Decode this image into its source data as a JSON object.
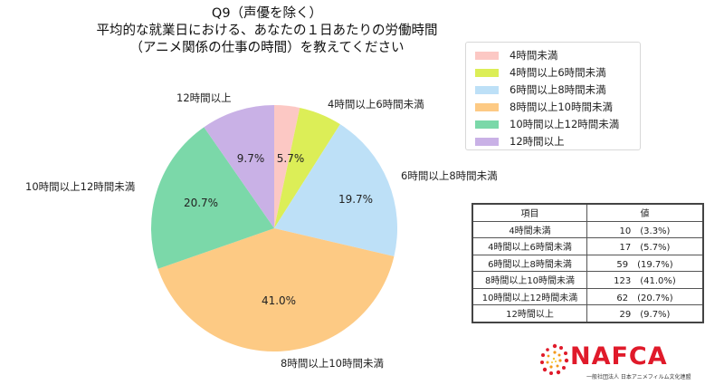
{
  "chart_data": {
    "type": "pie",
    "title": "Q9（声優を除く） 平均的な就業日における、あなたの１日あたりの労働時間 （アニメ関係の仕事の時間）を教えてください",
    "categories": [
      "4時間未満",
      "4時間以上6時間未満",
      "6時間以上8時間未満",
      "8時間以上10時間未満",
      "10時間以上12時間未満",
      "12時間以上"
    ],
    "values": [
      10,
      17,
      59,
      123,
      62,
      29
    ],
    "percentages": [
      3.3,
      5.7,
      19.7,
      41.0,
      20.7,
      9.7
    ],
    "colors": [
      "#fcc8c4",
      "#dcee57",
      "#bde0f7",
      "#fdca84",
      "#7bd8a9",
      "#c9b1e6"
    ],
    "slice_labels": [
      "",
      "5.7%",
      "19.7%",
      "41.0%",
      "20.7%",
      "9.7%"
    ],
    "legend_position": "right",
    "start_angle": "12 o'clock, clockwise"
  },
  "title": {
    "line1": "Q9（声優を除く）",
    "line2": "平均的な就業日における、あなたの１日あたりの労働時間",
    "line3": "（アニメ関係の仕事の時間）を教えてください"
  },
  "outer_labels": {
    "over12": "12時間以上",
    "h4to6": "4時間以上6時間未満",
    "h6to8": "6時間以上8時間未満",
    "h10to12": "10時間以上12時間未満",
    "h8to10": "8時間以上10時間未満"
  },
  "pct_labels": {
    "h4to6": "5.7%",
    "h6to8": "19.7%",
    "h8to10": "41.0%",
    "h10to12": "20.7%",
    "over12": "9.7%"
  },
  "legend": [
    {
      "label": "4時間未満",
      "color": "#fcc8c4"
    },
    {
      "label": "4時間以上6時間未満",
      "color": "#dcee57"
    },
    {
      "label": "6時間以上8時間未満",
      "color": "#bde0f7"
    },
    {
      "label": "8時間以上10時間未満",
      "color": "#fdca84"
    },
    {
      "label": "10時間以上12時間未満",
      "color": "#7bd8a9"
    },
    {
      "label": "12時間以上",
      "color": "#c9b1e6"
    }
  ],
  "table": {
    "headers": [
      "項目",
      "値"
    ],
    "rows": [
      [
        "4時間未満",
        "10　(3.3%)"
      ],
      [
        "4時間以上6時間未満",
        "17　(5.7%)"
      ],
      [
        "6時間以上8時間未満",
        "59　(19.7%)"
      ],
      [
        "8時間以上10時間未満",
        "123　(41.0%)"
      ],
      [
        "10時間以上12時間未満",
        "62　(20.7%)"
      ],
      [
        "12時間以上",
        "29　(9.7%)"
      ]
    ]
  },
  "logo": {
    "name": "NAFCA",
    "subtitle": "一般社団法人 日本アニメフィルム文化連盟",
    "color": "#e01a2a"
  }
}
